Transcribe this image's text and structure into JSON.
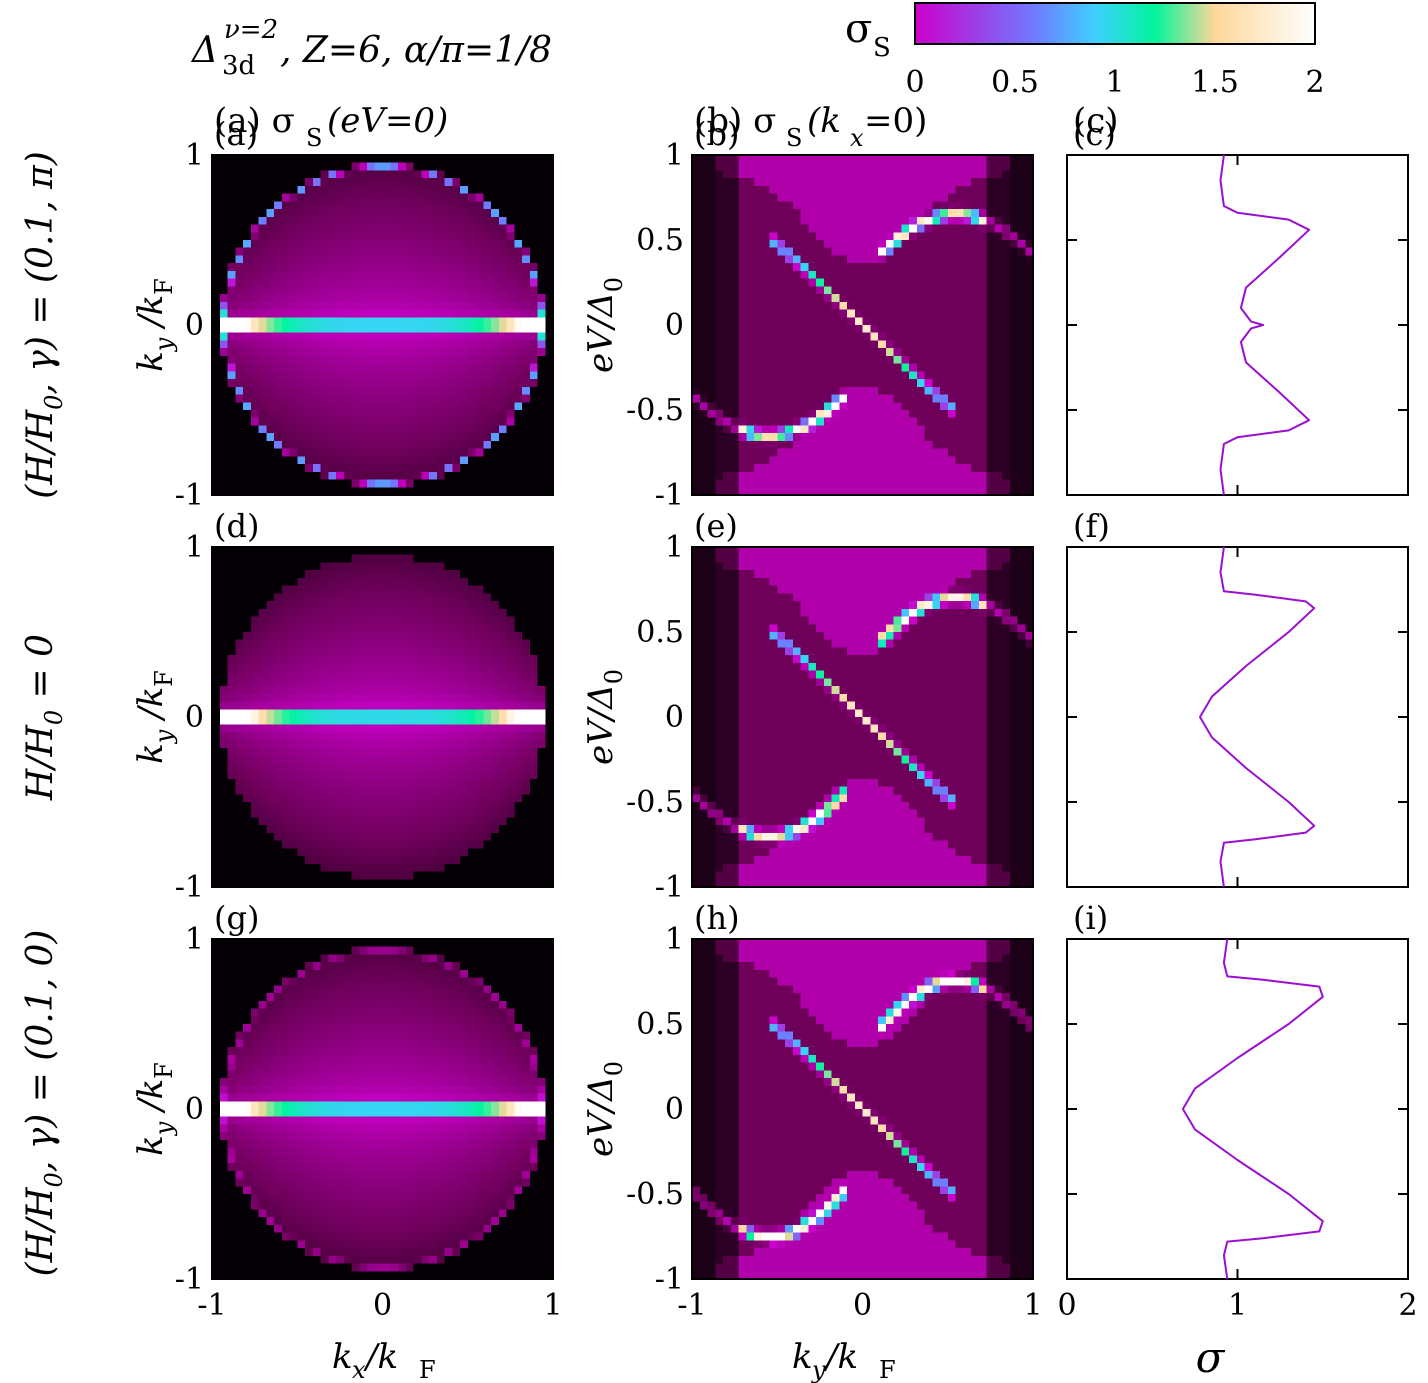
{
  "figure_title": {
    "delta": "Δ",
    "sub": "3d",
    "sup": "ν=2",
    "rest": ", Z=6, α/π=1/8"
  },
  "colorbar": {
    "label_main": "σ",
    "label_sub": "S",
    "ticks": [
      "0",
      "0.5",
      "1",
      "1.5",
      "2"
    ],
    "range": [
      0,
      2
    ],
    "colors": [
      "#000000",
      "#cc00cc",
      "#3fd0ff",
      "#00ff99",
      "#ffd79a",
      "#ffffff"
    ]
  },
  "column_titles": {
    "a": {
      "label": "(a) σ",
      "sub": "S",
      "arg": "(eV=0)"
    },
    "b": {
      "label": "(b) σ",
      "sub": "S",
      "arg": "(k",
      "argsub": "x",
      "argend": "=0)"
    },
    "c": {
      "label": "(c)"
    }
  },
  "panel_labels": [
    "(a)",
    "(b)",
    "(c)",
    "(d)",
    "(e)",
    "(f)",
    "(g)",
    "(h)",
    "(i)"
  ],
  "row_labels": [
    {
      "text": "(H/H",
      "sub": "0",
      "rest": ", γ) = (0.1, π)"
    },
    {
      "text": "H/H",
      "sub": "0",
      "rest": " = 0"
    },
    {
      "text": "(H/H",
      "sub": "0",
      "rest": ", γ) = (0.1, 0)"
    }
  ],
  "axes": {
    "kx_label": {
      "k": "k",
      "ksub": "x",
      "slash": " /k",
      "F": "F"
    },
    "ky_label": {
      "k": "k",
      "ksub": "y",
      "slash": " /k",
      "F": "F"
    },
    "ev_label": {
      "main": "eV/Δ",
      "sub": "0"
    },
    "sigma_label": "σ",
    "ticks_k": [
      "-1",
      "0",
      "1"
    ],
    "ticks_ev": [
      "1",
      "0.5",
      "0",
      "-0.5",
      "-1"
    ],
    "ticks_sigma": [
      "0",
      "1",
      "2"
    ]
  },
  "chart_data": [
    {
      "panel": "a",
      "type": "heatmap",
      "x": "k_x/k_F",
      "y": "k_y/k_F",
      "xlim": [
        -1,
        1
      ],
      "ylim": [
        -1,
        1
      ],
      "z": "σ_S(eV=0)",
      "zlim": [
        0,
        2
      ]
    },
    {
      "panel": "b",
      "type": "heatmap",
      "x": "k_y/k_F",
      "y": "eV/Δ0",
      "xlim": [
        -1,
        1
      ],
      "ylim": [
        -1,
        1
      ],
      "z": "σ_S(k_x=0)",
      "zlim": [
        0,
        2
      ]
    },
    {
      "panel": "c",
      "type": "line",
      "x": "σ",
      "y": "eV/Δ0",
      "xlim": [
        0,
        2
      ],
      "ylim": [
        -1,
        1
      ],
      "points": [
        [
          0.92,
          -1
        ],
        [
          0.9,
          -0.85
        ],
        [
          0.92,
          -0.7
        ],
        [
          1.0,
          -0.66
        ],
        [
          1.3,
          -0.62
        ],
        [
          1.42,
          -0.56
        ],
        [
          1.25,
          -0.4
        ],
        [
          1.05,
          -0.22
        ],
        [
          1.02,
          -0.1
        ],
        [
          1.08,
          -0.02
        ],
        [
          1.15,
          0
        ],
        [
          1.08,
          0.02
        ],
        [
          1.02,
          0.1
        ],
        [
          1.05,
          0.22
        ],
        [
          1.25,
          0.4
        ],
        [
          1.42,
          0.56
        ],
        [
          1.3,
          0.62
        ],
        [
          1.0,
          0.66
        ],
        [
          0.92,
          0.7
        ],
        [
          0.9,
          0.85
        ],
        [
          0.92,
          1
        ]
      ]
    },
    {
      "panel": "d",
      "type": "heatmap",
      "x": "k_x/k_F",
      "y": "k_y/k_F",
      "xlim": [
        -1,
        1
      ],
      "ylim": [
        -1,
        1
      ],
      "z": "σ_S(eV=0)",
      "zlim": [
        0,
        2
      ]
    },
    {
      "panel": "e",
      "type": "heatmap",
      "x": "k_y/k_F",
      "y": "eV/Δ0",
      "xlim": [
        -1,
        1
      ],
      "ylim": [
        -1,
        1
      ],
      "z": "σ_S(k_x=0)",
      "zlim": [
        0,
        2
      ]
    },
    {
      "panel": "f",
      "type": "line",
      "x": "σ",
      "y": "eV/Δ0",
      "xlim": [
        0,
        2
      ],
      "ylim": [
        -1,
        1
      ],
      "points": [
        [
          0.92,
          -1
        ],
        [
          0.9,
          -0.85
        ],
        [
          0.92,
          -0.74
        ],
        [
          1.1,
          -0.72
        ],
        [
          1.4,
          -0.68
        ],
        [
          1.45,
          -0.64
        ],
        [
          1.3,
          -0.5
        ],
        [
          1.05,
          -0.3
        ],
        [
          0.85,
          -0.12
        ],
        [
          0.78,
          0
        ],
        [
          0.85,
          0.12
        ],
        [
          1.05,
          0.3
        ],
        [
          1.3,
          0.5
        ],
        [
          1.45,
          0.64
        ],
        [
          1.4,
          0.68
        ],
        [
          1.1,
          0.72
        ],
        [
          0.92,
          0.74
        ],
        [
          0.9,
          0.85
        ],
        [
          0.92,
          1
        ]
      ]
    },
    {
      "panel": "g",
      "type": "heatmap",
      "x": "k_x/k_F",
      "y": "k_y/k_F",
      "xlim": [
        -1,
        1
      ],
      "ylim": [
        -1,
        1
      ],
      "z": "σ_S(eV=0)",
      "zlim": [
        0,
        2
      ]
    },
    {
      "panel": "h",
      "type": "heatmap",
      "x": "k_y/k_F",
      "y": "eV/Δ0",
      "xlim": [
        -1,
        1
      ],
      "ylim": [
        -1,
        1
      ],
      "z": "σ_S(k_x=0)",
      "zlim": [
        0,
        2
      ]
    },
    {
      "panel": "i",
      "type": "line",
      "x": "σ",
      "y": "eV/Δ0",
      "xlim": [
        0,
        2
      ],
      "ylim": [
        -1,
        1
      ],
      "points": [
        [
          0.94,
          -1
        ],
        [
          0.92,
          -0.86
        ],
        [
          0.94,
          -0.78
        ],
        [
          1.15,
          -0.76
        ],
        [
          1.48,
          -0.72
        ],
        [
          1.5,
          -0.66
        ],
        [
          1.3,
          -0.5
        ],
        [
          1.0,
          -0.3
        ],
        [
          0.75,
          -0.12
        ],
        [
          0.68,
          0
        ],
        [
          0.75,
          0.12
        ],
        [
          1.0,
          0.3
        ],
        [
          1.3,
          0.5
        ],
        [
          1.5,
          0.66
        ],
        [
          1.48,
          0.72
        ],
        [
          1.15,
          0.76
        ],
        [
          0.94,
          0.78
        ],
        [
          0.92,
          0.86
        ],
        [
          0.94,
          1
        ]
      ]
    }
  ],
  "params": {
    "kx_panels": [
      {
        "rim": 0.9,
        "centerline": 1.6,
        "rimWidth": 1.0
      },
      {
        "rim": 0.0,
        "centerline": 1.7,
        "rimWidth": 1.0
      },
      {
        "rim": 0.35,
        "centerline": 1.6,
        "rimWidth": 1.0
      }
    ],
    "ev_panels": [
      {
        "peak": 0.65
      },
      {
        "peak": 0.7
      },
      {
        "peak": 0.75
      }
    ]
  }
}
